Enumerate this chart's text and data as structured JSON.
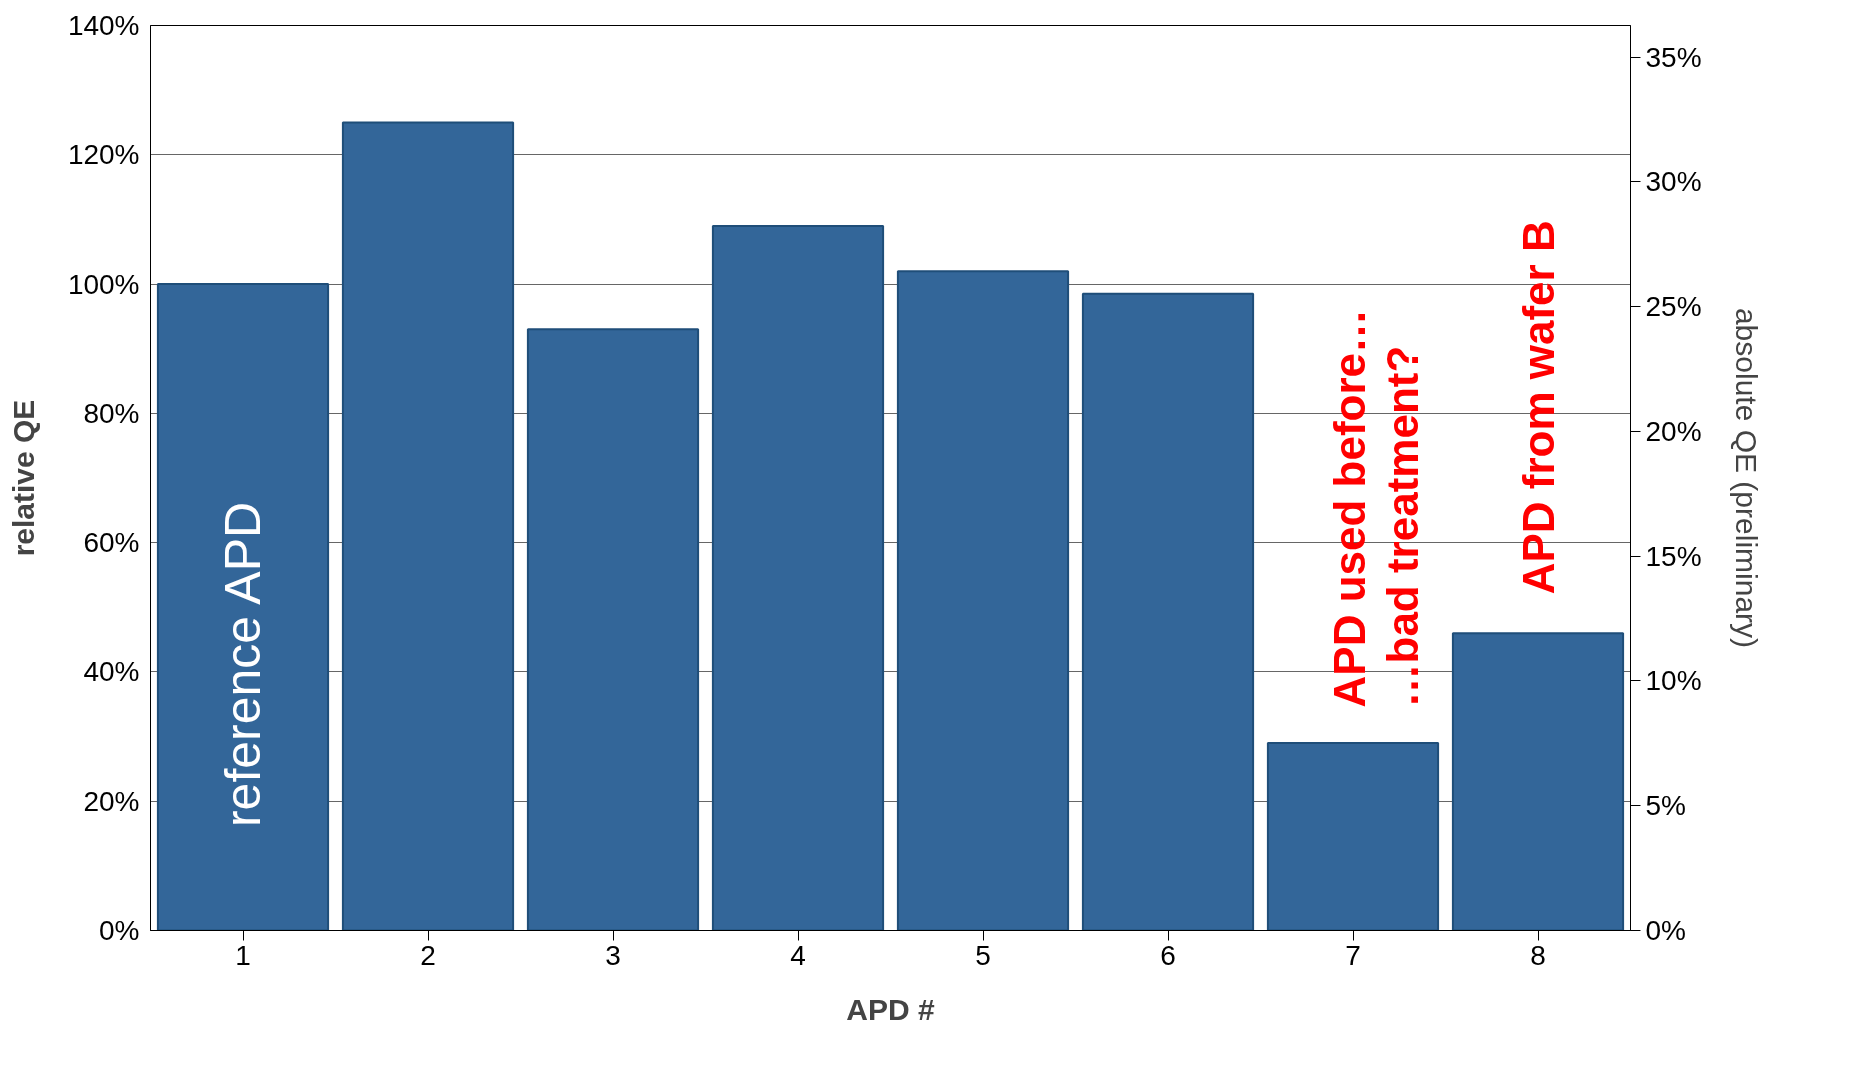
{
  "chart_data": {
    "type": "bar",
    "xlabel": "APD #",
    "ylabel": "relative QE",
    "y2label": "absolute QE (preliminary)",
    "categories": [
      "1",
      "2",
      "3",
      "4",
      "5",
      "6",
      "7",
      "8"
    ],
    "values": [
      100,
      125,
      93,
      109,
      102,
      98.5,
      29,
      46
    ],
    "color": "#336699",
    "ylim": [
      0,
      140
    ],
    "yticks": [
      {
        "value": 0,
        "label": "0%"
      },
      {
        "value": 20,
        "label": "20%"
      },
      {
        "value": 40,
        "label": "40%"
      },
      {
        "value": 60,
        "label": "60%"
      },
      {
        "value": 80,
        "label": "80%"
      },
      {
        "value": 100,
        "label": "100%"
      },
      {
        "value": 120,
        "label": "120%"
      },
      {
        "value": 140,
        "label": "140%"
      }
    ],
    "y2lim": [
      0,
      36.27
    ],
    "y2ticks": [
      {
        "value": 0,
        "label": "0%"
      },
      {
        "value": 5,
        "label": "5%"
      },
      {
        "value": 10,
        "label": "10%"
      },
      {
        "value": 15,
        "label": "15%"
      },
      {
        "value": 20,
        "label": "20%"
      },
      {
        "value": 25,
        "label": "25%"
      },
      {
        "value": 30,
        "label": "30%"
      },
      {
        "value": 35,
        "label": "35%"
      }
    ],
    "grid": "y",
    "annotations": [
      "reference APD",
      "APD used before…",
      "…bad treatment?",
      "APD from wafer B"
    ]
  }
}
